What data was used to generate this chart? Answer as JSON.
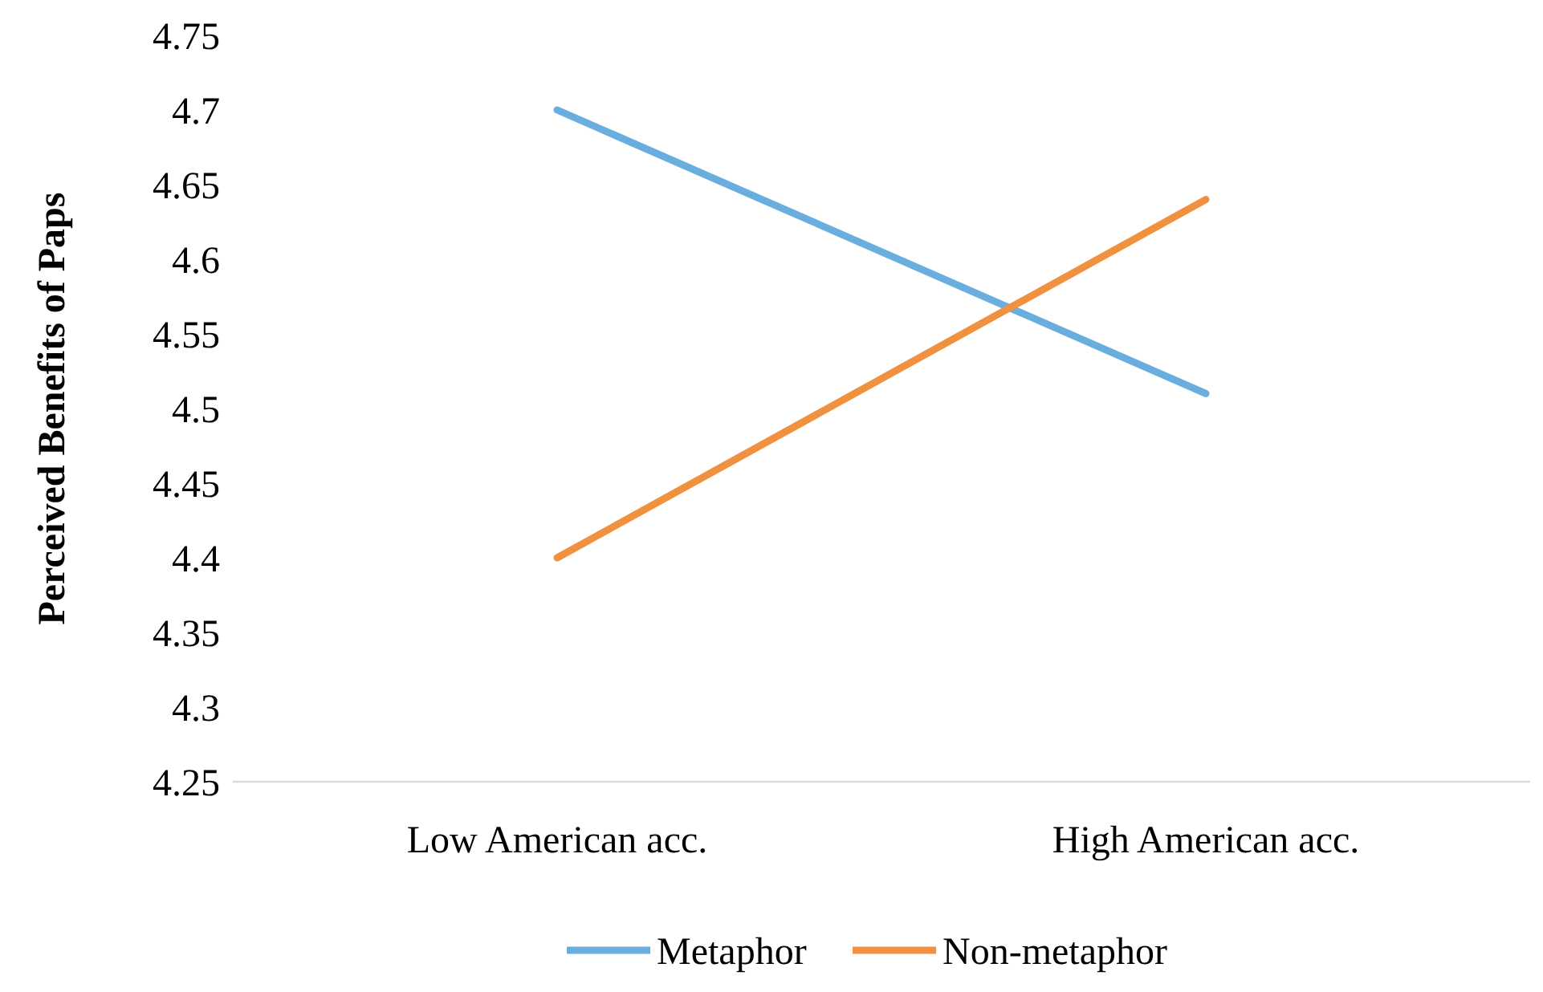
{
  "chart_data": {
    "type": "line",
    "ylabel": "Perceived Benefits of Paps",
    "categories": [
      "Low American acc.",
      "High American acc."
    ],
    "series": [
      {
        "name": "Metaphor",
        "color": "#6aaee0",
        "values": [
          4.7,
          4.51
        ]
      },
      {
        "name": "Non-metaphor",
        "color": "#f0913f",
        "values": [
          4.4,
          4.64
        ]
      }
    ],
    "ylim": [
      4.25,
      4.75
    ],
    "yticks": [
      4.25,
      4.3,
      4.35,
      4.4,
      4.45,
      4.5,
      4.55,
      4.6,
      4.65,
      4.7,
      4.75
    ],
    "grid": false,
    "legend": "bottom",
    "marker": "none",
    "line_style": "solid"
  }
}
